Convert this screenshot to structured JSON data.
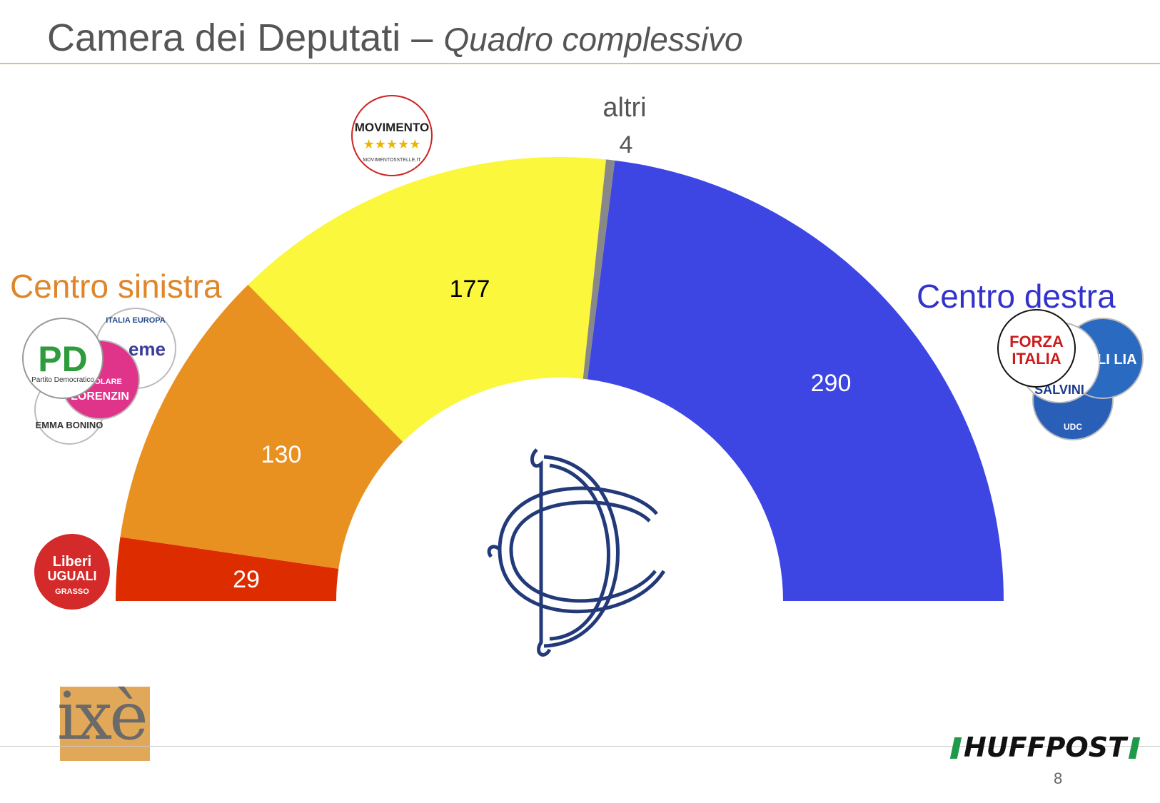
{
  "header": {
    "title": "Camera dei Deputati",
    "dash": "–",
    "subtitle": "Quadro complessivo"
  },
  "chart_data": {
    "type": "pie",
    "shape": "semicircle",
    "total": 630,
    "categories": [
      "Liberi e Uguali",
      "Centro sinistra",
      "Movimento 5 Stelle",
      "altri",
      "Centro destra"
    ],
    "values": [
      29,
      130,
      177,
      4,
      290
    ],
    "colors": [
      "#dd2c00",
      "#e89120",
      "#fbf73c",
      "#888888",
      "#3d46e3"
    ],
    "value_label_colors": [
      "#ffffff",
      "#ffffff",
      "#000000",
      "#555555",
      "#ffffff"
    ],
    "slice_labels": [
      "29",
      "130",
      "177",
      "4",
      "290"
    ],
    "coalition_labels": [
      {
        "text": "Centro sinistra",
        "color": "#e0862a"
      },
      {
        "text": "Centro destra",
        "color": "#3333cc"
      }
    ],
    "other_label": "altri",
    "legend": "none"
  },
  "logos": {
    "m5s": {
      "line1": "MOVIMENTO",
      "line2": "MOVIMENTO5STELLE.IT"
    },
    "pd": {
      "mark": "PD",
      "caption": "Partito Democratico"
    },
    "leu": {
      "line1": "Liberi",
      "line2": "UGUALI",
      "line3": "GRASSO"
    },
    "forza_italia": {
      "line1": "FORZA",
      "line2": "ITALIA"
    },
    "emma_bonino": "EMMA BONINO",
    "italia_europa": "ITALIA EUROPA",
    "lorenzin": "LORENZIN",
    "popolare": "POPOLARE",
    "insieme": "eme",
    "lega": "SALVINI",
    "fdi": "ELLI LIA",
    "udc": "UDC",
    "ixe": "ixè",
    "huffpost": "HUFFPOST"
  },
  "footer": {
    "page_number": "8"
  }
}
